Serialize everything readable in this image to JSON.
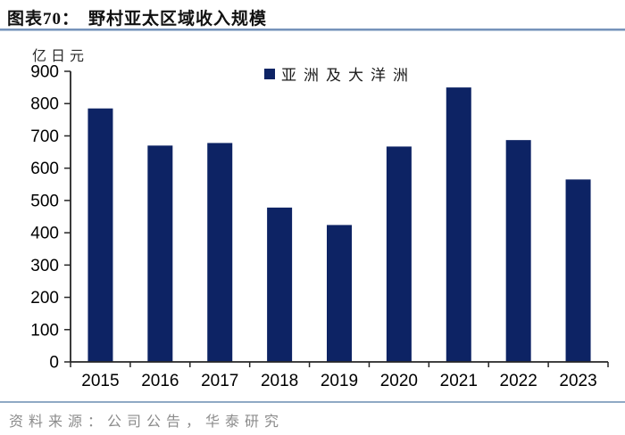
{
  "figure": {
    "label": "图表70：",
    "title": "野村亚太区域收入规模",
    "source": "资料来源：公司公告，华泰研究"
  },
  "chart_data": {
    "type": "bar",
    "title": "野村亚太区域收入规模",
    "unit_label": "亿日元",
    "xlabel": "",
    "ylabel": "亿日元",
    "legend": [
      "亚洲及大洋洲"
    ],
    "legend_position": "top-center",
    "categories": [
      "2015",
      "2016",
      "2017",
      "2018",
      "2019",
      "2020",
      "2021",
      "2022",
      "2023"
    ],
    "values": [
      785,
      670,
      678,
      478,
      424,
      667,
      850,
      687,
      565
    ],
    "ylim": [
      0,
      900
    ],
    "ytick_step": 100,
    "grid": false,
    "bar_color": "#0d2364",
    "axis_color": "#262626",
    "label_color": "#000000"
  }
}
